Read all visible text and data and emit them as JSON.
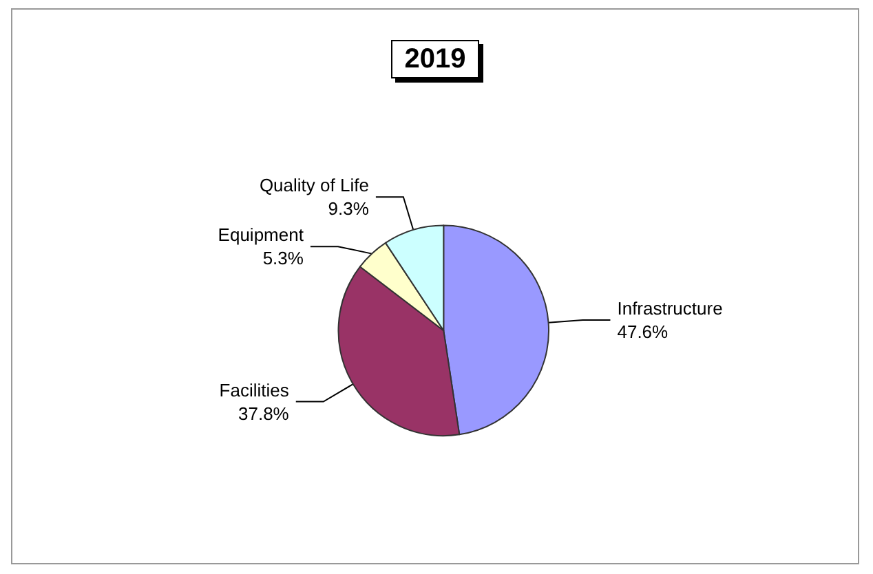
{
  "chart_data": {
    "type": "pie",
    "title": "2019",
    "categories": [
      "Infrastructure",
      "Facilities",
      "Equipment",
      "Quality of Life"
    ],
    "values": [
      47.6,
      37.8,
      5.3,
      9.3
    ],
    "value_labels": [
      "47.6%",
      "37.8%",
      "5.3%",
      "9.3%"
    ],
    "colors": [
      "#9999ff",
      "#993366",
      "#ffffcc",
      "#ccffff"
    ],
    "legend": false
  }
}
